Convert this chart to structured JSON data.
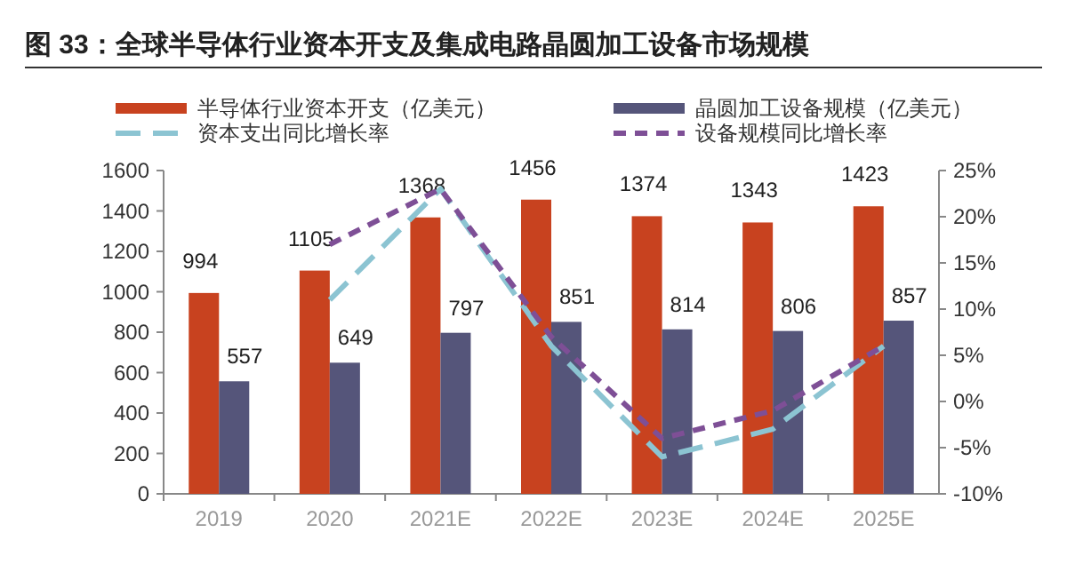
{
  "chart_data": {
    "type": "bar",
    "title": "图 33：全球半导体行业资本开支及集成电路晶圆加工设备市场规模",
    "categories": [
      "2019",
      "2020",
      "2021E",
      "2022E",
      "2023E",
      "2024E",
      "2025E"
    ],
    "series": [
      {
        "name": "半导体行业资本开支（亿美元）",
        "color": "#c8421f",
        "values": [
          994,
          1105,
          1368,
          1456,
          1374,
          1343,
          1423
        ],
        "value_labels": [
          "994",
          "1105",
          "1368",
          "1456",
          "1374",
          "1343",
          "1423"
        ]
      },
      {
        "name": "晶圆加工设备规模（亿美元）",
        "color": "#55557a",
        "values": [
          557,
          649,
          797,
          851,
          814,
          806,
          857
        ],
        "value_labels": [
          "557",
          "649",
          "797",
          "851",
          "814",
          "806",
          "857"
        ]
      },
      {
        "name": "资本支出同比增长率",
        "type": "line",
        "axis": "y2",
        "line_style": "dashed",
        "color": "#8cc4d2",
        "values": [
          null,
          11,
          23,
          6,
          -6,
          -3,
          6
        ]
      },
      {
        "name": "设备规模同比增长率",
        "type": "line",
        "axis": "y2",
        "line_style": "dotted",
        "color": "#7e4f96",
        "values": [
          null,
          17,
          23,
          7,
          -4,
          -1,
          6
        ]
      }
    ],
    "ylim": [
      0,
      1600
    ],
    "yticks": [
      0,
      200,
      400,
      600,
      800,
      1000,
      1200,
      1400,
      1600
    ],
    "y2lim": [
      -10,
      25
    ],
    "y2ticks": [
      {
        "value": -10,
        "label": "-10%"
      },
      {
        "value": -5,
        "label": "-5%"
      },
      {
        "value": 0,
        "label": "0%"
      },
      {
        "value": 5,
        "label": "5%"
      },
      {
        "value": 10,
        "label": "10%"
      },
      {
        "value": 15,
        "label": "15%"
      },
      {
        "value": 20,
        "label": "20%"
      },
      {
        "value": 25,
        "label": "25%"
      }
    ],
    "legend": "top",
    "grid": false
  }
}
